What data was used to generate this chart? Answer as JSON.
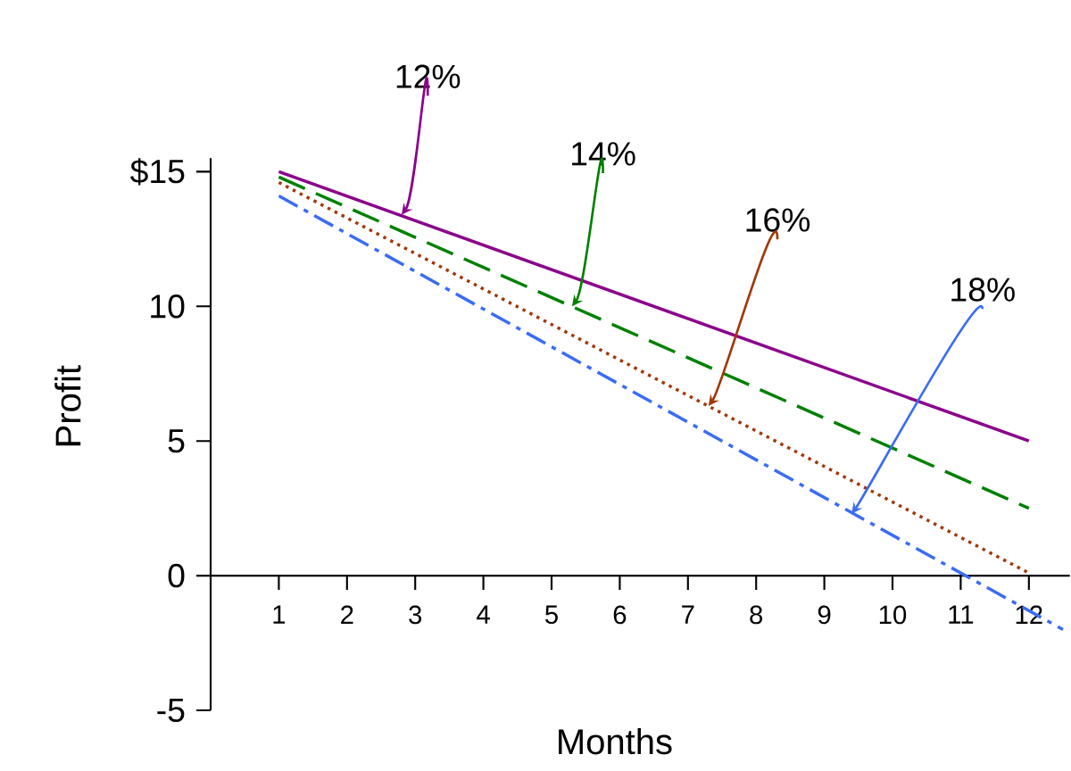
{
  "chart_data": {
    "type": "line",
    "xlabel": "Months",
    "ylabel": "Profit",
    "xlim": [
      0,
      12.6
    ],
    "ylim": [
      -5,
      15.5
    ],
    "xticks": [
      1,
      2,
      3,
      4,
      5,
      6,
      7,
      8,
      9,
      10,
      11,
      12
    ],
    "yticks": [
      -5,
      0,
      5,
      10,
      {
        "value": 15,
        "label": "$15"
      }
    ],
    "grid": false,
    "marker": "none",
    "series": [
      {
        "color": "#8b008b",
        "line_style": "solid",
        "x": [
          1,
          12
        ],
        "values": [
          15,
          5
        ]
      },
      {
        "color": "#008000",
        "line_style": "dashed",
        "x": [
          1,
          12
        ],
        "values": [
          14.8,
          2.5
        ]
      },
      {
        "color": "#a0380a",
        "line_style": "dotted",
        "x": [
          1,
          12
        ],
        "values": [
          14.6,
          0.1
        ]
      },
      {
        "color": "#3a6cf4",
        "line_style": "dashdot",
        "x": [
          1,
          12.5
        ],
        "values": [
          14.1,
          -2
        ]
      }
    ],
    "annotations": [
      {
        "text": "12%",
        "x": 2.8,
        "y": 13.4
      },
      {
        "text": "14%",
        "x": 5.3,
        "y": 10
      },
      {
        "text": "16%",
        "x": 7.3,
        "y": 6.3
      },
      {
        "text": "18%",
        "x": 9.4,
        "y": 2.3
      }
    ]
  }
}
